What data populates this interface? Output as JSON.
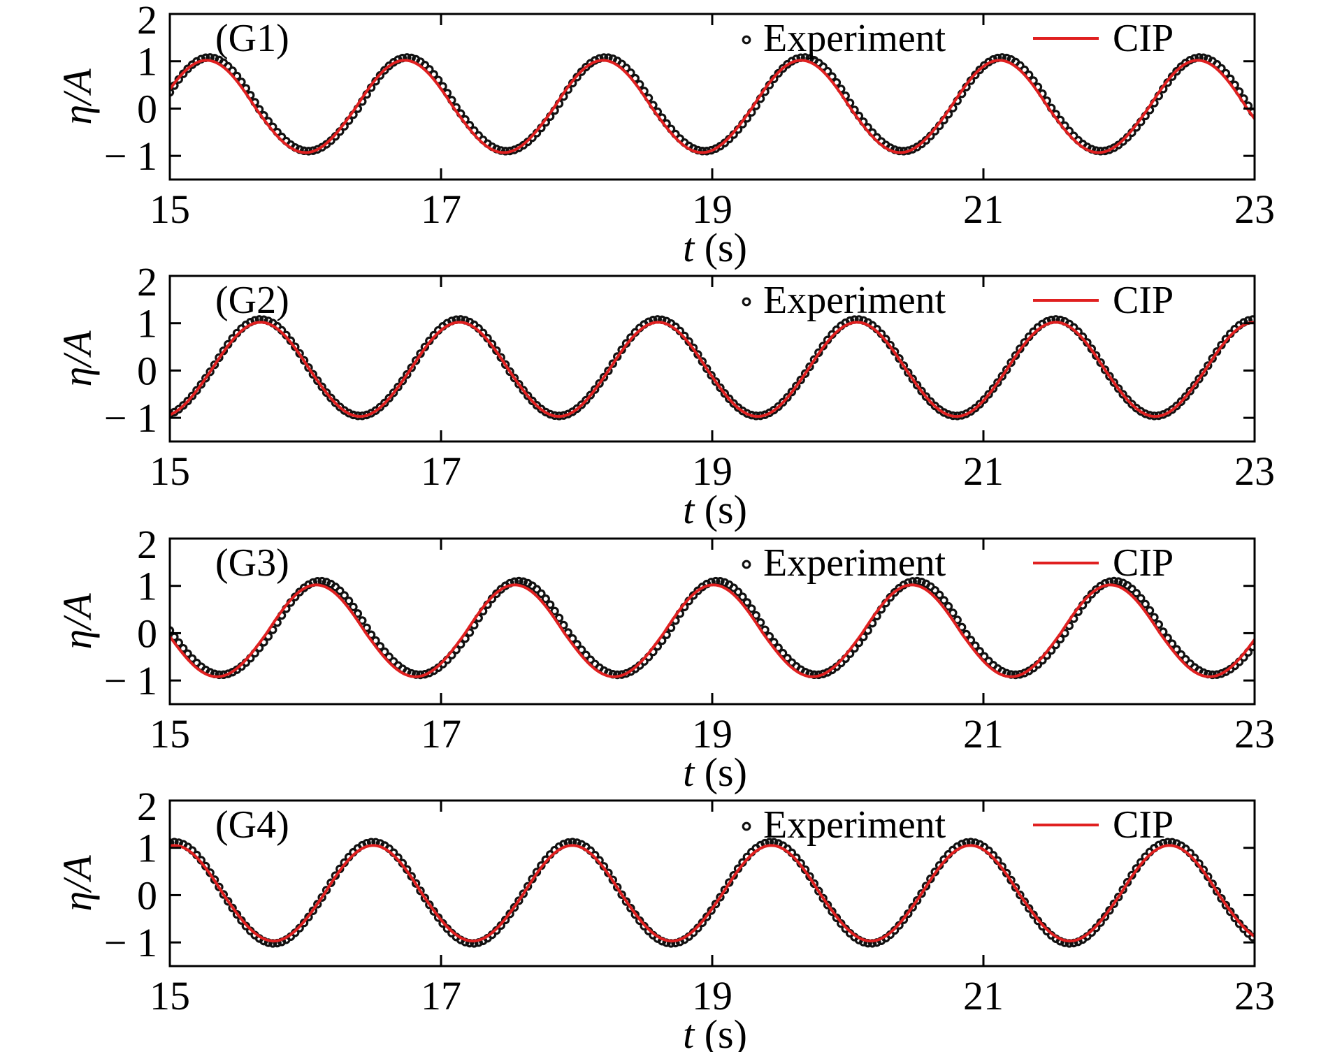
{
  "figure": {
    "legend": {
      "series": [
        "Experiment",
        "CIP"
      ],
      "placement": "top-right"
    },
    "colors": {
      "Experiment": "#111111",
      "CIP": "#e02020"
    }
  },
  "chart_data": [
    {
      "type": "line",
      "panel_label": "(G1)",
      "xlabel_var": "t",
      "xlabel_unit": " (s)",
      "ylabel": "η/A",
      "xlim": [
        15,
        23
      ],
      "ylim": [
        -1.5,
        2
      ],
      "xticks": [
        "15",
        "17",
        "19",
        "21",
        "23"
      ],
      "yticks": [
        {
          "v": 2,
          "label": "2"
        },
        {
          "v": 1,
          "label": "1"
        },
        {
          "v": 0,
          "label": "0"
        },
        {
          "v": -1,
          "label": "− 1"
        }
      ],
      "series": [
        {
          "name": "Experiment",
          "kind": "markers",
          "period": 1.462,
          "t_crest": 15.29,
          "crest_amp": 1.08,
          "trough_amp": 0.9
        },
        {
          "name": "CIP",
          "kind": "line",
          "period": 1.462,
          "t_crest": 15.27,
          "crest_amp": 1.02,
          "trough_amp": 0.93
        }
      ]
    },
    {
      "type": "line",
      "panel_label": "(G2)",
      "xlabel_var": "t",
      "xlabel_unit": " (s)",
      "ylabel": "η/A",
      "xlim": [
        15,
        23
      ],
      "ylim": [
        -1.5,
        2
      ],
      "xticks": [
        "15",
        "17",
        "19",
        "21",
        "23"
      ],
      "yticks": [
        {
          "v": 2,
          "label": "2"
        },
        {
          "v": 1,
          "label": "1"
        },
        {
          "v": 0,
          "label": "0"
        },
        {
          "v": -1,
          "label": "− 1"
        }
      ],
      "series": [
        {
          "name": "Experiment",
          "kind": "markers",
          "period": 1.466,
          "t_crest": 15.67,
          "crest_amp": 1.08,
          "trough_amp": 0.96
        },
        {
          "name": "CIP",
          "kind": "line",
          "period": 1.466,
          "t_crest": 15.67,
          "crest_amp": 1.02,
          "trough_amp": 0.97
        }
      ]
    },
    {
      "type": "line",
      "panel_label": "(G3)",
      "xlabel_var": "t",
      "xlabel_unit": " (s)",
      "ylabel": "η/A",
      "xlim": [
        15,
        23
      ],
      "ylim": [
        -1.5,
        2
      ],
      "xticks": [
        "15",
        "17",
        "19",
        "21",
        "23"
      ],
      "yticks": [
        {
          "v": 2,
          "label": "2"
        },
        {
          "v": 1,
          "label": "1"
        },
        {
          "v": 0,
          "label": "0"
        },
        {
          "v": -1,
          "label": "− 1"
        }
      ],
      "series": [
        {
          "name": "Experiment",
          "kind": "markers",
          "period": 1.464,
          "t_crest": 16.11,
          "crest_amp": 1.1,
          "trough_amp": 0.88
        },
        {
          "name": "CIP",
          "kind": "line",
          "period": 1.464,
          "t_crest": 16.08,
          "crest_amp": 1.02,
          "trough_amp": 0.92
        }
      ]
    },
    {
      "type": "line",
      "panel_label": "(G4)",
      "xlabel_var": "t",
      "xlabel_unit": " (s)",
      "ylabel": "η/A",
      "xlim": [
        15,
        23
      ],
      "ylim": [
        -1.5,
        2
      ],
      "xticks": [
        "15",
        "17",
        "19",
        "21",
        "23"
      ],
      "yticks": [
        {
          "v": 2,
          "label": "2"
        },
        {
          "v": 1,
          "label": "1"
        },
        {
          "v": 0,
          "label": "0"
        },
        {
          "v": -1,
          "label": "− 1"
        }
      ],
      "series": [
        {
          "name": "Experiment",
          "kind": "markers",
          "period": 1.468,
          "t_crest": 16.5,
          "crest_amp": 1.12,
          "trough_amp": 1.02
        },
        {
          "name": "CIP",
          "kind": "line",
          "period": 1.468,
          "t_crest": 16.5,
          "crest_amp": 1.05,
          "trough_amp": 0.97
        }
      ]
    }
  ]
}
